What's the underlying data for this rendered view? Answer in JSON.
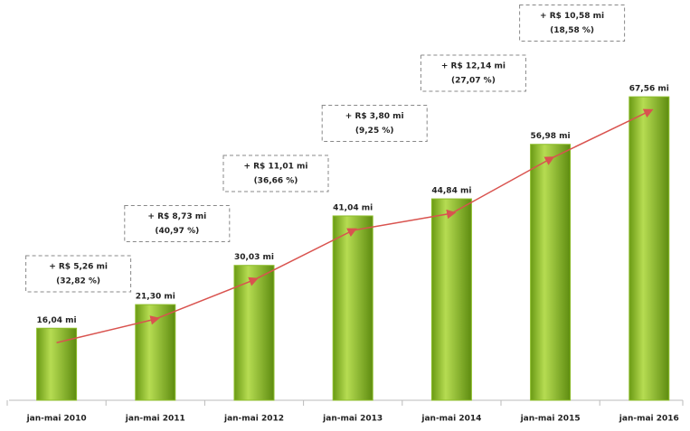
{
  "chart_data": {
    "type": "bar",
    "categories": [
      "jan-mai 2010",
      "jan-mai 2011",
      "jan-mai 2012",
      "jan-mai 2013",
      "jan-mai 2014",
      "jan-mai 2015",
      "jan-mai 2016"
    ],
    "values": [
      16.04,
      21.3,
      30.03,
      41.04,
      44.84,
      56.98,
      67.56
    ],
    "value_labels": [
      "16,04 mi",
      "21,30 mi",
      "30,03 mi",
      "41,04 mi",
      "44,84 mi",
      "56,98 mi",
      "67,56 mi"
    ],
    "color": "#8cbd2a",
    "ylim": [
      0,
      70
    ],
    "annotations": [
      [
        "+ R$ 5,26 mi",
        "(32,82 %)"
      ],
      [
        "+ R$ 8,73 mi",
        "(40,97 %)"
      ],
      [
        "+ R$ 11,01 mi",
        "(36,66 %)"
      ],
      [
        "+ R$ 3,80 mi",
        "(9,25 %)"
      ],
      [
        "+ R$ 12,14 mi",
        "(27,07 %)"
      ],
      [
        "+ R$ 10,58 mi",
        "(18,58 %)"
      ]
    ]
  }
}
